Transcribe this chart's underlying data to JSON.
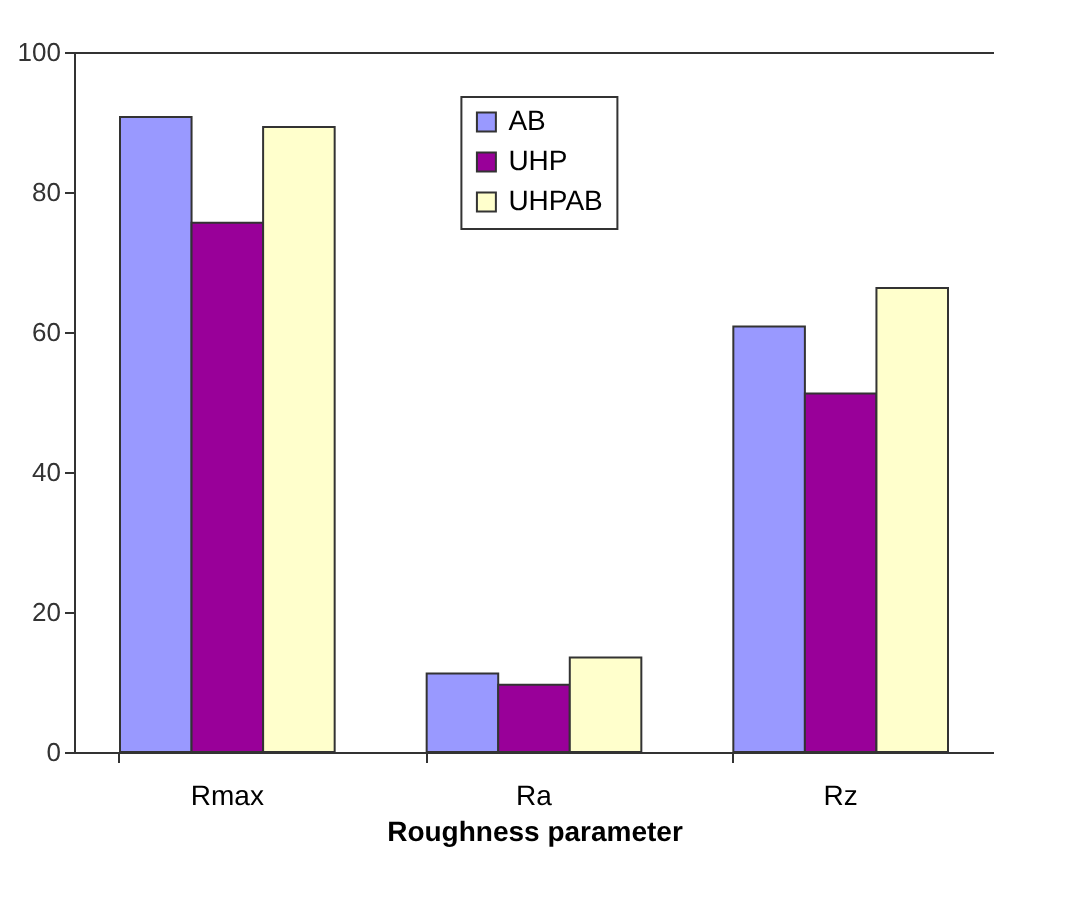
{
  "chart_data": {
    "type": "bar",
    "xlabel": "Roughness parameter",
    "categories": [
      "Rmax",
      "Ra",
      "Rz"
    ],
    "series": [
      {
        "name": "AB",
        "color": "#9999ff",
        "values": [
          90.7,
          11.2,
          60.8
        ]
      },
      {
        "name": "UHP",
        "color": "#990099",
        "values": [
          75.6,
          9.6,
          51.2
        ]
      },
      {
        "name": "UHPAB",
        "color": "#ffffcc",
        "values": [
          89.3,
          13.5,
          66.3
        ]
      }
    ],
    "ylim": [
      0,
      100
    ],
    "yticks": [
      0,
      20,
      40,
      60,
      80,
      100
    ],
    "grid": false,
    "legend": "top"
  }
}
